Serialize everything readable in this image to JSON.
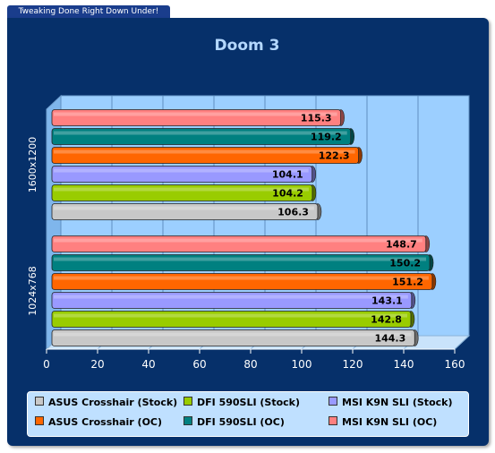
{
  "header_tab": "Tweaking Done Right Down Under!",
  "chart_data": {
    "type": "bar",
    "orientation": "horizontal",
    "title": "Doom 3",
    "categories": [
      "1600x1200",
      "1024x768"
    ],
    "xlim": [
      0,
      160
    ],
    "xticks": [
      0,
      20,
      40,
      60,
      80,
      100,
      120,
      140,
      160
    ],
    "grid": true,
    "legend_position": "bottom",
    "series": [
      {
        "name": "ASUS Crosshair (Stock)",
        "color": "#c8c8c8",
        "values": [
          106.3,
          144.3
        ]
      },
      {
        "name": "DFI 590SLI (Stock)",
        "color": "#99cc00",
        "values": [
          104.2,
          142.8
        ]
      },
      {
        "name": "MSI K9N SLI (Stock)",
        "color": "#9999ff",
        "values": [
          104.1,
          143.1
        ]
      },
      {
        "name": "ASUS Crosshair (OC)",
        "color": "#ff6600",
        "values": [
          122.3,
          151.2
        ]
      },
      {
        "name": "DFI 590SLI (OC)",
        "color": "#008080",
        "values": [
          119.2,
          150.2
        ]
      },
      {
        "name": "MSI K9N SLI (OC)",
        "color": "#ff8080",
        "values": [
          115.3,
          148.7
        ]
      }
    ]
  }
}
